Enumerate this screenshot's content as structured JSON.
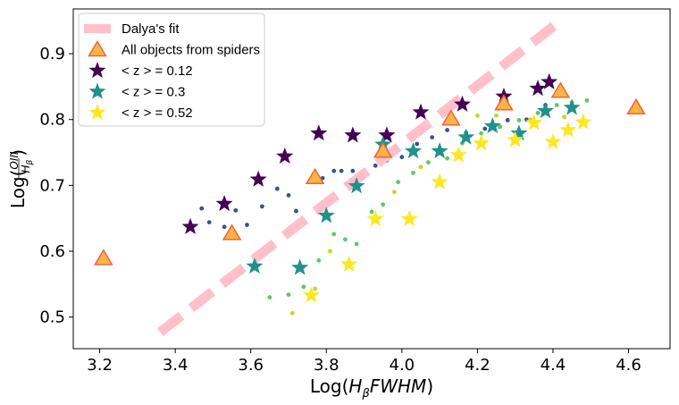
{
  "chart_data": {
    "type": "scatter",
    "xlabel": "Log(H_β FWHM)",
    "ylabel": "Log(OIII / H_β)",
    "xlim": [
      3.13,
      4.71
    ],
    "ylim": [
      0.452,
      0.968
    ],
    "x_ticks": [
      "3.2",
      "3.4",
      "3.6",
      "3.8",
      "4.0",
      "4.2",
      "4.4",
      "4.6"
    ],
    "y_ticks": [
      "0.5",
      "0.6",
      "0.7",
      "0.8",
      "0.9"
    ],
    "grid": false,
    "legend_position": "top-left",
    "series": [
      {
        "name": "Dalya's fit",
        "kind": "dashed-line",
        "color": "#ffc0cb",
        "x": [
          3.36,
          4.42
        ],
        "y": [
          0.477,
          0.95
        ]
      },
      {
        "name": "All objects from spiders",
        "kind": "triangle",
        "color": "#ffb347",
        "edge_color": "#e8663a",
        "x": [
          3.21,
          3.55,
          3.77,
          3.95,
          4.13,
          4.27,
          4.42,
          4.62
        ],
        "y": [
          0.588,
          0.626,
          0.711,
          0.751,
          0.8,
          0.823,
          0.842,
          0.817
        ]
      },
      {
        "name": "< z >  = 0.12",
        "kind": "star",
        "color": "#440154",
        "x": [
          3.44,
          3.53,
          3.62,
          3.69,
          3.78,
          3.87,
          3.96,
          4.05,
          4.16,
          4.27,
          4.36,
          4.39
        ],
        "y": [
          0.637,
          0.672,
          0.709,
          0.744,
          0.779,
          0.776,
          0.776,
          0.811,
          0.823,
          0.835,
          0.847,
          0.857
        ]
      },
      {
        "name": "< z >  = 0.3",
        "kind": "star",
        "color": "#21918c",
        "x": [
          3.61,
          3.73,
          3.8,
          3.88,
          3.95,
          4.03,
          4.1,
          4.17,
          4.24,
          4.31,
          4.38,
          4.45
        ],
        "y": [
          0.577,
          0.575,
          0.654,
          0.699,
          0.762,
          0.752,
          0.752,
          0.773,
          0.79,
          0.779,
          0.813,
          0.818
        ]
      },
      {
        "name": "< z >  = 0.52",
        "kind": "star",
        "color": "#fde725",
        "x": [
          3.76,
          3.86,
          3.93,
          4.02,
          4.1,
          4.15,
          4.21,
          4.3,
          4.35,
          4.4,
          4.44,
          4.48
        ],
        "y": [
          0.533,
          0.58,
          0.649,
          0.649,
          0.705,
          0.746,
          0.764,
          0.769,
          0.795,
          0.766,
          0.784,
          0.796
        ]
      },
      {
        "name": "",
        "kind": "dot",
        "color": "#3b528b",
        "x": [
          3.47,
          3.49,
          3.53,
          3.56,
          3.59,
          3.63,
          3.67,
          3.7,
          3.72,
          3.76,
          3.79,
          3.82,
          3.84,
          3.87,
          3.9,
          3.93,
          3.96,
          4.0,
          4.04,
          4.08,
          4.12,
          4.17,
          4.22,
          4.28,
          4.33,
          4.38
        ],
        "y": [
          0.665,
          0.644,
          0.637,
          0.662,
          0.64,
          0.668,
          0.695,
          0.685,
          0.661,
          0.707,
          0.711,
          0.722,
          0.722,
          0.722,
          0.717,
          0.73,
          0.738,
          0.743,
          0.763,
          0.773,
          0.784,
          0.78,
          0.786,
          0.799,
          0.8,
          0.822
        ]
      },
      {
        "name": "",
        "kind": "dot",
        "color": "#5ec962",
        "x": [
          3.65,
          3.7,
          3.74,
          3.78,
          3.82,
          3.85,
          3.88,
          3.92,
          3.95,
          3.99,
          4.03,
          4.07,
          4.12,
          4.16,
          4.21,
          4.26,
          4.31,
          4.36,
          4.41,
          4.45,
          4.49
        ],
        "y": [
          0.53,
          0.534,
          0.546,
          0.586,
          0.626,
          0.618,
          0.611,
          0.66,
          0.671,
          0.705,
          0.719,
          0.735,
          0.741,
          0.764,
          0.779,
          0.789,
          0.799,
          0.81,
          0.822,
          0.826,
          0.829
        ]
      },
      {
        "name": "",
        "kind": "dot",
        "color": "#b5de2b",
        "x": [
          3.71,
          3.77,
          3.81,
          3.98,
          4.05,
          4.1,
          4.2,
          4.25,
          4.34,
          4.43
        ],
        "y": [
          0.506,
          0.543,
          0.6,
          0.69,
          0.728,
          0.754,
          0.806,
          0.806,
          0.8,
          0.804
        ]
      }
    ]
  }
}
